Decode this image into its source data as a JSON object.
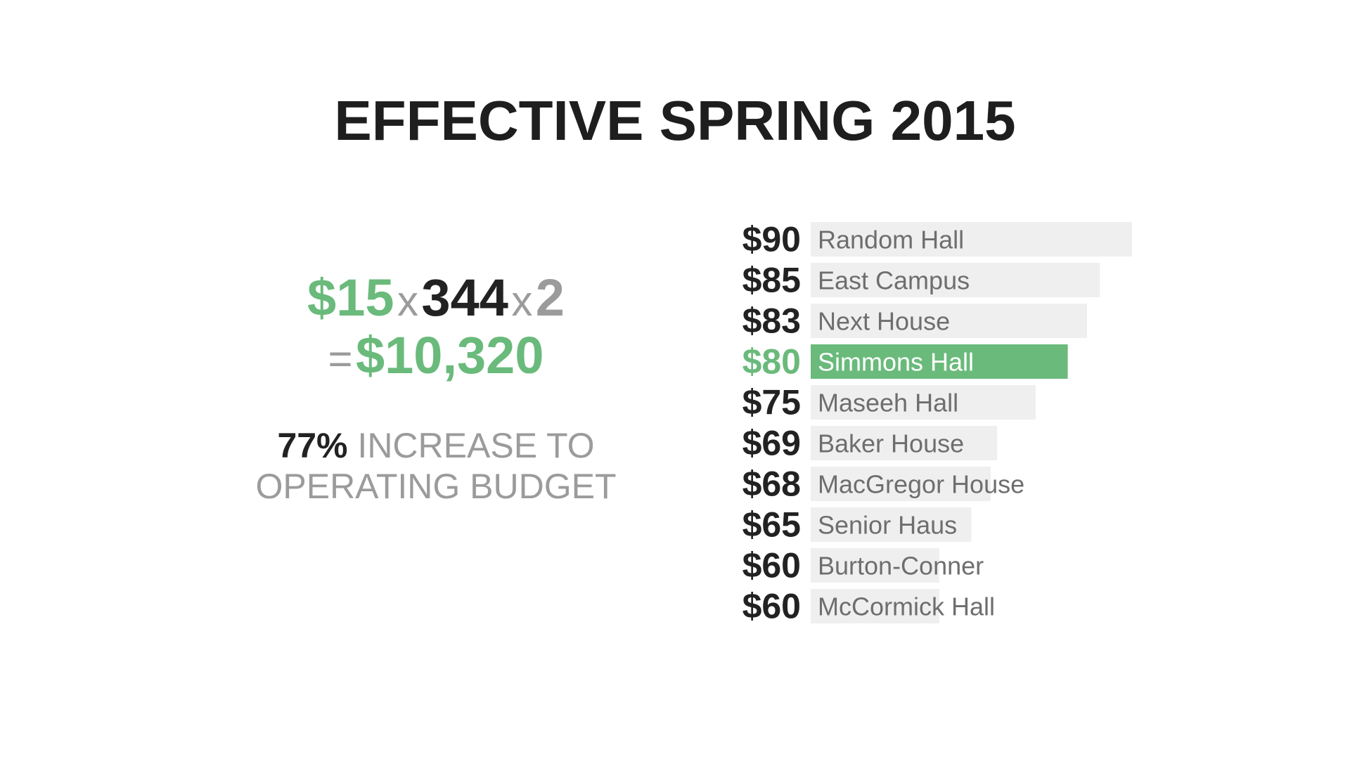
{
  "title": "EFFECTIVE SPRING 2015",
  "formula": {
    "fee": "$15",
    "times1": "x",
    "count": "344",
    "times2": "x",
    "multiplier": "2",
    "equals": "=",
    "total": "$10,320"
  },
  "increase": {
    "percent": "77%",
    "text_line1": "INCREASE TO",
    "text_line2": "OPERATING BUDGET"
  },
  "colors": {
    "highlight": "#6aba7b",
    "bar": "#efefef",
    "dark_text": "#222222",
    "grey_text": "#9b9b9b"
  },
  "chart_data": {
    "type": "bar",
    "orientation": "horizontal",
    "categories": [
      "Random Hall",
      "East Campus",
      "Next House",
      "Simmons Hall",
      "Maseeh Hall",
      "Baker House",
      "MacGregor House",
      "Senior Haus",
      "Burton-Conner",
      "McCormick Hall"
    ],
    "values": [
      90,
      85,
      83,
      80,
      75,
      69,
      68,
      65,
      60,
      60
    ],
    "value_labels": [
      "$90",
      "$85",
      "$83",
      "$80",
      "$75",
      "$69",
      "$68",
      "$65",
      "$60",
      "$60"
    ],
    "highlight": "Simmons Hall",
    "title": "",
    "xlabel": "",
    "ylabel": ""
  }
}
